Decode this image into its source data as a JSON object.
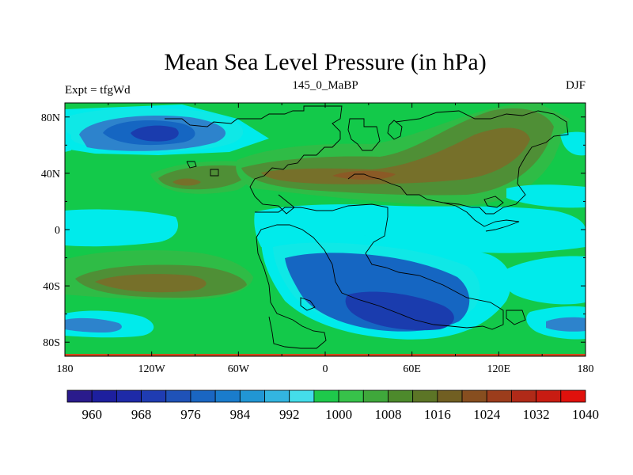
{
  "chart_data": {
    "type": "heatmap",
    "title": "Mean Sea Level Pressure (in hPa)",
    "left_label": "Expt = tfgWd",
    "center_label": "145_0_MaBP",
    "right_label": "DJF",
    "x_ticks": [
      "180",
      "120W",
      "60W",
      "0",
      "60E",
      "120E",
      "180"
    ],
    "x_tick_values": [
      -180,
      -120,
      -60,
      0,
      60,
      120,
      180
    ],
    "y_ticks": [
      "80N",
      "40N",
      "0",
      "40S",
      "80S"
    ],
    "y_tick_values": [
      80,
      40,
      0,
      -40,
      -80
    ],
    "xlim": [
      -180,
      180
    ],
    "ylim": [
      -90,
      90
    ],
    "colorbar": {
      "levels": [
        960,
        964,
        968,
        972,
        976,
        980,
        984,
        988,
        992,
        996,
        1000,
        1004,
        1008,
        1012,
        1016,
        1020,
        1024,
        1028,
        1032,
        1036,
        1040
      ],
      "labels": [
        "960",
        "968",
        "976",
        "984",
        "992",
        "1000",
        "1008",
        "1016",
        "1024",
        "1032",
        "1040"
      ],
      "colors": [
        "#2a1b8c",
        "#1d1f9e",
        "#1e2aa8",
        "#1f3cb2",
        "#1f52b8",
        "#1a66c2",
        "#1a7ccc",
        "#2196d4",
        "#33b5e0",
        "#44ddea",
        "#1ec94b",
        "#37c24a",
        "#3fa83b",
        "#4d8a2c",
        "#5c7526",
        "#715f22",
        "#874e1f",
        "#9c3d1c",
        "#b02a18",
        "#c81c12",
        "#e0110c"
      ]
    },
    "field_colors": {
      "c988": "#2d83cc",
      "c984": "#1566c2",
      "c976": "#1a3cae",
      "c996": "#0fe8e6",
      "c1000": "#00ebeb",
      "c1004": "#13c94a",
      "c1008": "#2fbc46",
      "c1016": "#4f8f36",
      "c1020": "#76702a",
      "c1024": "#8b5a26"
    }
  }
}
